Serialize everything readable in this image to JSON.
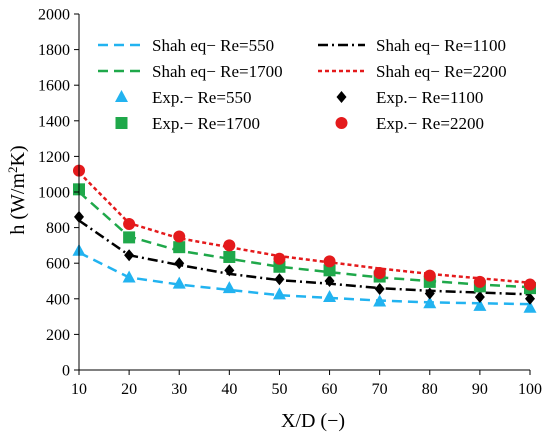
{
  "chart_data": {
    "type": "line",
    "xlabel": "X/D (−)",
    "ylabel_main": "h (W/m",
    "ylabel_sup": "2",
    "ylabel_end": "K)",
    "xlim": [
      10,
      100
    ],
    "ylim": [
      0,
      2000
    ],
    "xticks": [
      10,
      20,
      30,
      40,
      50,
      60,
      70,
      80,
      90,
      100
    ],
    "yticks": [
      0,
      200,
      400,
      600,
      800,
      1000,
      1200,
      1400,
      1600,
      1800,
      2000
    ],
    "grid": false,
    "legend_position": "top",
    "series": [
      {
        "name": "Shah eq− Re=550",
        "kind": "line",
        "dash": "dashed",
        "color": "#22b3f0",
        "x": [
          10,
          20,
          30,
          40,
          50,
          60,
          70,
          80,
          90,
          100
        ],
        "y": [
          660,
          520,
          480,
          450,
          420,
          405,
          390,
          380,
          375,
          370
        ]
      },
      {
        "name": "Shah eq− Re=1100",
        "kind": "line",
        "dash": "dashdot",
        "color": "#000000",
        "x": [
          10,
          20,
          30,
          40,
          50,
          60,
          70,
          80,
          90,
          100
        ],
        "y": [
          840,
          645,
          590,
          540,
          505,
          485,
          460,
          445,
          435,
          425
        ]
      },
      {
        "name": "Shah eq− Re=1700",
        "kind": "line",
        "dash": "dashed",
        "color": "#1fa84a",
        "x": [
          10,
          20,
          30,
          40,
          50,
          60,
          70,
          80,
          90,
          100
        ],
        "y": [
          1000,
          750,
          670,
          625,
          580,
          550,
          520,
          500,
          480,
          465
        ]
      },
      {
        "name": "Shah eq− Re=2200",
        "kind": "line",
        "dash": "dotted",
        "color": "#e41a1c",
        "x": [
          10,
          20,
          30,
          40,
          50,
          60,
          70,
          80,
          90,
          100
        ],
        "y": [
          1110,
          825,
          740,
          690,
          640,
          605,
          570,
          540,
          515,
          490
        ]
      },
      {
        "name": "Exp.− Re=550",
        "kind": "marker",
        "marker": "triangle",
        "color": "#22b3f0",
        "x": [
          10,
          20,
          30,
          40,
          50,
          60,
          70,
          80,
          90,
          100
        ],
        "y": [
          670,
          520,
          485,
          460,
          425,
          410,
          385,
          375,
          360,
          350
        ]
      },
      {
        "name": "Exp.− Re=1100",
        "kind": "marker",
        "marker": "diamond",
        "color": "#000000",
        "x": [
          10,
          20,
          30,
          40,
          50,
          60,
          70,
          80,
          90,
          100
        ],
        "y": [
          860,
          645,
          600,
          560,
          510,
          500,
          455,
          430,
          410,
          400
        ]
      },
      {
        "name": "Exp.− Re=1700",
        "kind": "marker",
        "marker": "square",
        "color": "#1fa84a",
        "x": [
          10,
          20,
          30,
          40,
          50,
          60,
          70,
          80,
          90,
          100
        ],
        "y": [
          1015,
          745,
          690,
          635,
          580,
          560,
          525,
          495,
          470,
          460
        ]
      },
      {
        "name": "Exp.− Re=2200",
        "kind": "marker",
        "marker": "circle",
        "color": "#e41a1c",
        "x": [
          10,
          20,
          30,
          40,
          50,
          60,
          70,
          80,
          90,
          100
        ],
        "y": [
          1120,
          820,
          750,
          700,
          625,
          610,
          545,
          530,
          495,
          480
        ]
      }
    ]
  }
}
